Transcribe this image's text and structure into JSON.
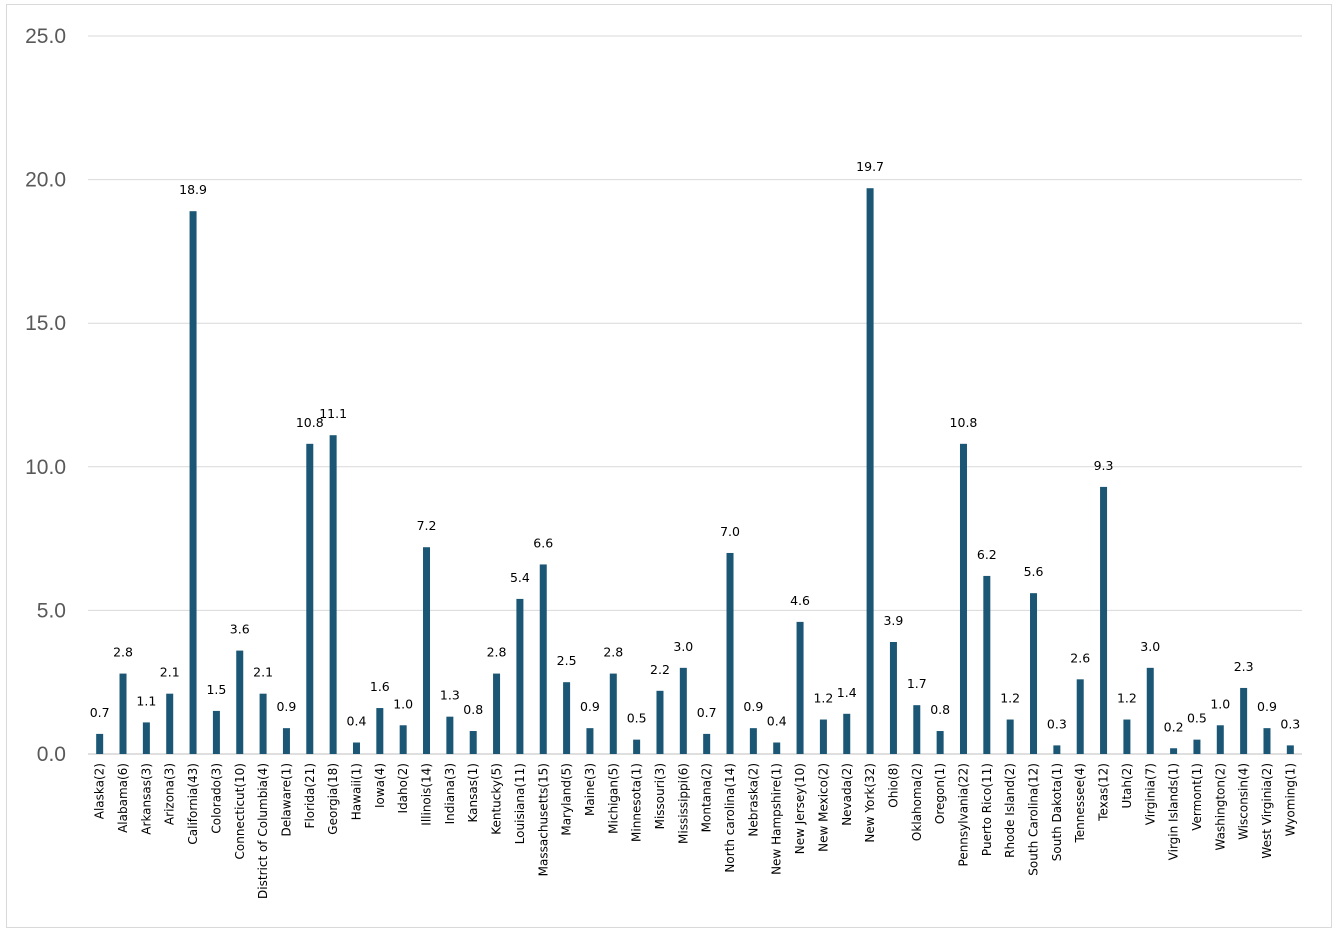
{
  "chart_data": {
    "type": "bar",
    "title": "",
    "xlabel": "",
    "ylabel": "",
    "ylim": [
      0,
      25
    ],
    "yticks": [
      "0.0",
      "5.0",
      "10.0",
      "15.0",
      "20.0",
      "25.0"
    ],
    "grid": true,
    "legend": "none",
    "bar_color": "#1b5675",
    "categories": [
      "Alaska(2)",
      "Alabama(6)",
      "Arkansas(3)",
      "Arizona(3)",
      "California(43)",
      "Colorado(3)",
      "Connecticut(10)",
      "District of Columbia(4)",
      "Delaware(1)",
      "Florida(21)",
      "Georgia(18)",
      "Hawaii(1)",
      "Iowa(4)",
      "Idaho(2)",
      "Illinois(14)",
      "Indiana(3)",
      "Kansas(1)",
      "Kentucky(5)",
      "Louisiana(11)",
      "Massachusetts(15)",
      "Maryland(5)",
      "Maine(3)",
      "Michigan(5)",
      "Minnesota(1)",
      "Missouri(3)",
      "Mississippi(6)",
      "Montana(2)",
      "North carolina(14)",
      "Nebraska(2)",
      "New Hampshire(1)",
      "New Jersey(10)",
      "New Mexico(2)",
      "Nevada(2)",
      "New York(32)",
      "Ohio(8)",
      "Oklahoma(2)",
      "Oregon(1)",
      "Pennsylvania(22)",
      "Puerto Rico(11)",
      "Rhode Island(2)",
      "South Carolina(12)",
      "South Dakota(1)",
      "Tennessee(4)",
      "Texas(12)",
      "Utah(2)",
      "Virginia(7)",
      "Virgin Islands(1)",
      "Vermont(1)",
      "Washington(2)",
      "Wisconsin(4)",
      "West Virginia(2)",
      "Wyoming(1)"
    ],
    "values": [
      0.7,
      2.8,
      1.1,
      2.1,
      18.9,
      1.5,
      3.6,
      2.1,
      0.9,
      10.8,
      11.1,
      0.4,
      1.6,
      1.0,
      7.2,
      1.3,
      0.8,
      2.8,
      5.4,
      6.6,
      2.5,
      0.9,
      2.8,
      0.5,
      2.2,
      3.0,
      0.7,
      7.0,
      0.9,
      0.4,
      4.6,
      1.2,
      1.4,
      19.7,
      3.9,
      1.7,
      0.8,
      10.8,
      6.2,
      1.2,
      5.6,
      0.3,
      2.6,
      9.3,
      1.2,
      3.0,
      0.2,
      0.5,
      1.0,
      2.3,
      0.9,
      0.3
    ],
    "data_labels": [
      "0.7",
      "2.8",
      "1.1",
      "2.1",
      "18.9",
      "1.5",
      "3.6",
      "2.1",
      "0.9",
      "10.8",
      "11.1",
      "0.4",
      "1.6",
      "1.0",
      "7.2",
      "1.3",
      "0.8",
      "2.8",
      "5.4",
      "6.6",
      "2.5",
      "0.9",
      "2.8",
      "0.5",
      "2.2",
      "3.0",
      "0.7",
      "7.0",
      "0.9",
      "0.4",
      "4.6",
      "1.2",
      "1.4",
      "19.7",
      "3.9",
      "1.7",
      "0.8",
      "10.8",
      "6.2",
      "1.2",
      "5.6",
      "0.3",
      "2.6",
      "9.3",
      "1.2",
      "3.0",
      "0.2",
      "0.5",
      "1.0",
      "2.3",
      "0.9",
      "0.3"
    ]
  }
}
